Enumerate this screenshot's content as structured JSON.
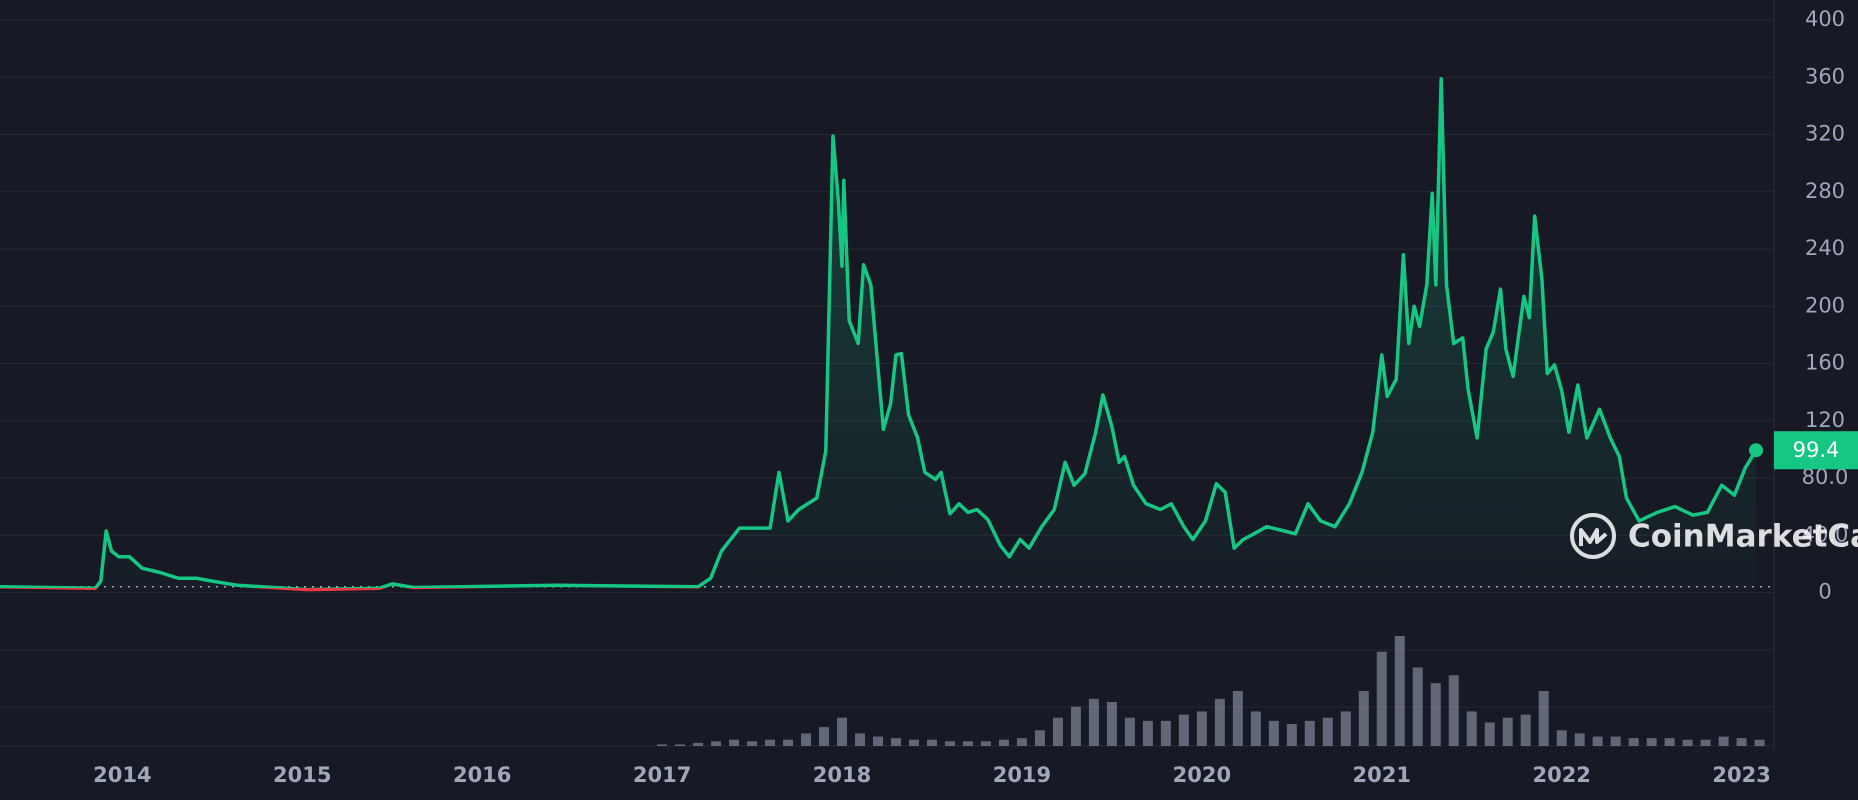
{
  "chart_data": {
    "type": "line",
    "x": [
      2013.32,
      2013.85,
      2013.88,
      2013.91,
      2013.94,
      2013.98,
      2014.04,
      2014.11,
      2014.21,
      2014.31,
      2014.41,
      2014.5,
      2014.64,
      2015.03,
      2015.43,
      2015.5,
      2015.62,
      2016.41,
      2017.2,
      2017.27,
      2017.33,
      2017.43,
      2017.53,
      2017.6,
      2017.65,
      2017.7,
      2017.76,
      2017.86,
      2017.91,
      2017.95,
      2017.98,
      2018.0,
      2018.01,
      2018.04,
      2018.09,
      2018.12,
      2018.16,
      2018.2,
      2018.23,
      2018.27,
      2018.3,
      2018.33,
      2018.37,
      2018.42,
      2018.46,
      2018.52,
      2018.55,
      2018.6,
      2018.65,
      2018.7,
      2018.75,
      2018.81,
      2018.88,
      2018.93,
      2018.99,
      2019.04,
      2019.11,
      2019.18,
      2019.24,
      2019.29,
      2019.35,
      2019.41,
      2019.45,
      2019.5,
      2019.54,
      2019.57,
      2019.62,
      2019.69,
      2019.77,
      2019.83,
      2019.9,
      2019.95,
      2020.02,
      2020.08,
      2020.13,
      2020.18,
      2020.23,
      2020.29,
      2020.36,
      2020.46,
      2020.52,
      2020.59,
      2020.66,
      2020.74,
      2020.82,
      2020.89,
      2020.95,
      2021.0,
      2021.03,
      2021.08,
      2021.12,
      2021.15,
      2021.18,
      2021.21,
      2021.25,
      2021.28,
      2021.3,
      2021.33,
      2021.36,
      2021.4,
      2021.45,
      2021.48,
      2021.53,
      2021.58,
      2021.62,
      2021.66,
      2021.69,
      2021.73,
      2021.79,
      2021.82,
      2021.85,
      2021.89,
      2021.92,
      2021.96,
      2022.0,
      2022.04,
      2022.09,
      2022.14,
      2022.21,
      2022.27,
      2022.32,
      2022.36,
      2022.43,
      2022.53,
      2022.63,
      2022.73,
      2022.81,
      2022.89,
      2022.96,
      2023.02,
      2023.08
    ],
    "values": [
      4,
      3,
      8,
      43,
      29,
      25,
      25,
      17,
      14,
      10,
      10,
      8,
      5,
      2,
      3,
      6,
      3.5,
      5,
      4,
      10,
      29,
      45,
      45,
      45,
      84,
      50,
      58,
      66,
      99,
      319,
      273,
      228,
      288,
      190,
      174,
      229,
      215,
      157,
      114,
      132,
      166,
      167,
      124,
      108,
      84,
      79,
      84,
      55,
      62,
      56,
      58,
      51,
      33,
      25,
      37,
      31,
      46,
      58,
      91,
      75,
      83,
      112,
      138,
      116,
      91,
      95,
      75,
      62,
      58,
      62,
      46,
      37,
      50,
      76,
      70,
      31,
      37,
      41,
      46,
      43,
      41,
      62,
      50,
      46,
      62,
      84,
      112,
      166,
      137,
      149,
      236,
      174,
      200,
      186,
      215,
      279,
      215,
      359,
      215,
      174,
      178,
      142,
      108,
      170,
      182,
      212,
      170,
      151,
      207,
      192,
      263,
      219,
      153,
      159,
      141,
      112,
      145,
      108,
      128,
      108,
      95,
      66,
      50,
      56,
      60,
      54,
      56,
      75,
      68,
      87,
      99.4
    ],
    "up_color": "#16c784",
    "down_color": "#ea3943",
    "reference": 4,
    "xlim": [
      2013.32,
      2023.18
    ],
    "xticks": [
      2014,
      2015,
      2016,
      2017,
      2018,
      2019,
      2020,
      2021,
      2022,
      2023
    ],
    "ylim": [
      0,
      414
    ],
    "yticks": [
      0,
      {
        "value": 40,
        "label": "40.0"
      },
      {
        "value": 80,
        "label": "80.0"
      },
      120,
      160,
      200,
      240,
      280,
      320,
      360,
      400
    ],
    "grid": true,
    "volume": {
      "color": "#a1a7bb",
      "x": [
        2017.0,
        2017.1,
        2017.2,
        2017.3,
        2017.4,
        2017.5,
        2017.6,
        2017.7,
        2017.8,
        2017.9,
        2018.0,
        2018.1,
        2018.2,
        2018.3,
        2018.4,
        2018.5,
        2018.6,
        2018.7,
        2018.8,
        2018.9,
        2019.0,
        2019.1,
        2019.2,
        2019.3,
        2019.4,
        2019.5,
        2019.6,
        2019.7,
        2019.8,
        2019.9,
        2020.0,
        2020.1,
        2020.2,
        2020.3,
        2020.4,
        2020.5,
        2020.6,
        2020.7,
        2020.8,
        2020.9,
        2021.0,
        2021.1,
        2021.2,
        2021.3,
        2021.4,
        2021.5,
        2021.6,
        2021.7,
        2021.8,
        2021.9,
        2022.0,
        2022.1,
        2022.2,
        2022.3,
        2022.4,
        2022.5,
        2022.6,
        2022.7,
        2022.8,
        2022.9,
        2023.0,
        2023.1
      ],
      "values": [
        1,
        1,
        2,
        3,
        4,
        3,
        4,
        4,
        8,
        12,
        18,
        8,
        6,
        5,
        4,
        4,
        3,
        3,
        3,
        4,
        5,
        10,
        18,
        25,
        30,
        28,
        18,
        16,
        16,
        20,
        22,
        30,
        35,
        22,
        16,
        14,
        16,
        18,
        22,
        35,
        60,
        70,
        50,
        40,
        45,
        22,
        15,
        18,
        20,
        35,
        10,
        8,
        6,
        6,
        5,
        5,
        5,
        4,
        4,
        6,
        5,
        4
      ]
    },
    "watermark": "CoinMarketCap"
  }
}
